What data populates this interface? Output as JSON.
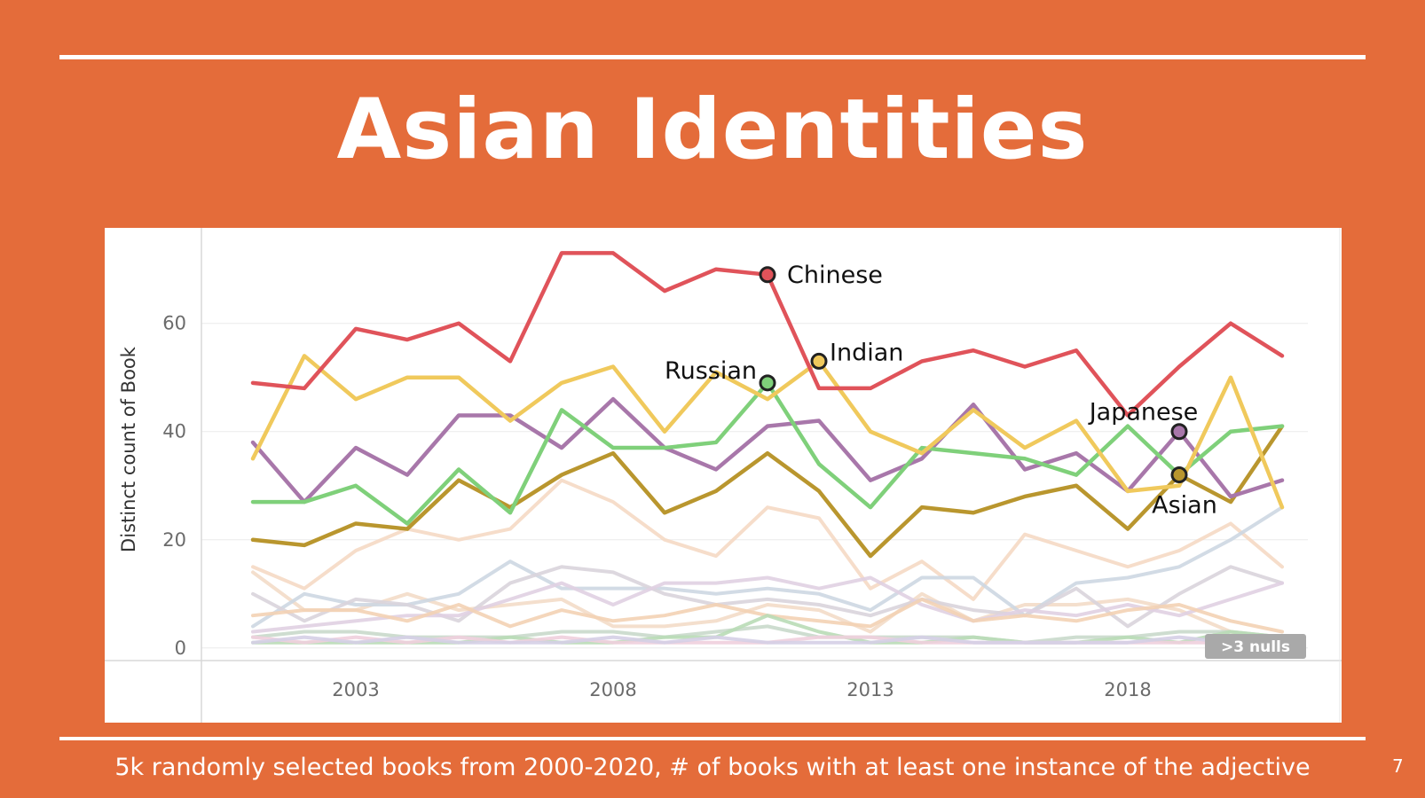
{
  "slide": {
    "title": "Asian Identities",
    "footer": "5k randomly selected books from 2000-2020, # of books with at least one instance of the adjective",
    "page_number": "7"
  },
  "chart_data": {
    "type": "line",
    "ylabel": "Distinct count of Book",
    "xlabel": "",
    "x": [
      2001,
      2002,
      2003,
      2004,
      2005,
      2006,
      2007,
      2008,
      2009,
      2010,
      2011,
      2012,
      2013,
      2014,
      2015,
      2016,
      2017,
      2018,
      2019,
      2020,
      2021
    ],
    "x_ticks": [
      "2003",
      "2008",
      "2013",
      "2018"
    ],
    "x_tick_values": [
      2003,
      2008,
      2013,
      2018
    ],
    "y_ticks": [
      "0",
      "20",
      "40",
      "60"
    ],
    "y_tick_values": [
      0,
      20,
      40,
      60
    ],
    "ylim": [
      -2,
      77
    ],
    "xlim": [
      2000,
      2021.5
    ],
    "grid": true,
    "nulls_badge": ">3 nulls",
    "series": [
      {
        "name": "Chinese",
        "color": "#e0535a",
        "highlight": true,
        "values": [
          49,
          48,
          59,
          57,
          60,
          53,
          73,
          73,
          66,
          70,
          69,
          48,
          48,
          53,
          55,
          52,
          55,
          43,
          52,
          60,
          54
        ],
        "marker_x": 2011,
        "marker_y": 69
      },
      {
        "name": "Indian",
        "color": "#f0c95c",
        "highlight": true,
        "values": [
          35,
          54,
          46,
          50,
          50,
          42,
          49,
          52,
          40,
          51,
          46,
          53,
          40,
          36,
          44,
          37,
          42,
          29,
          30,
          50,
          26
        ],
        "marker_x": 2012,
        "marker_y": 53
      },
      {
        "name": "Russian",
        "color": "#7fd07a",
        "highlight": true,
        "values": [
          27,
          27,
          30,
          23,
          33,
          25,
          44,
          37,
          37,
          38,
          49,
          34,
          26,
          37,
          36,
          35,
          32,
          41,
          32,
          40,
          41
        ],
        "marker_x": 2011,
        "marker_y": 49
      },
      {
        "name": "Japanese",
        "color": "#a877aa",
        "highlight": true,
        "values": [
          38,
          27,
          37,
          32,
          43,
          43,
          37,
          46,
          37,
          33,
          41,
          42,
          31,
          35,
          45,
          33,
          36,
          29,
          40,
          28,
          31
        ],
        "marker_x": 2019,
        "marker_y": 40
      },
      {
        "name": "Asian",
        "color": "#b9962e",
        "highlight": true,
        "values": [
          20,
          19,
          23,
          22,
          31,
          26,
          32,
          36,
          25,
          29,
          36,
          29,
          17,
          26,
          25,
          28,
          30,
          22,
          32,
          27,
          41
        ],
        "marker_x": 2019,
        "marker_y": 32
      },
      {
        "name": "",
        "color": "#f5d9c4",
        "highlight": false,
        "values": [
          15,
          11,
          18,
          22,
          20,
          22,
          31,
          27,
          20,
          17,
          26,
          24,
          11,
          16,
          9,
          21,
          18,
          15,
          18,
          23,
          15
        ]
      },
      {
        "name": "",
        "color": "#f3dcc8",
        "highlight": false,
        "values": [
          14,
          7,
          7,
          10,
          7,
          8,
          9,
          4,
          4,
          5,
          8,
          7,
          3,
          10,
          5,
          8,
          8,
          9,
          7,
          3,
          1
        ]
      },
      {
        "name": "",
        "color": "#cdd7e2",
        "highlight": false,
        "values": [
          4,
          10,
          8,
          8,
          10,
          16,
          11,
          11,
          11,
          10,
          11,
          10,
          7,
          13,
          13,
          6,
          12,
          13,
          15,
          20,
          26
        ]
      },
      {
        "name": "",
        "color": "#d9d4dc",
        "highlight": false,
        "values": [
          10,
          5,
          9,
          8,
          5,
          12,
          15,
          14,
          10,
          8,
          9,
          8,
          6,
          9,
          7,
          6,
          11,
          4,
          10,
          15,
          12
        ]
      },
      {
        "name": "",
        "color": "#e0d0e2",
        "highlight": false,
        "values": [
          3,
          4,
          5,
          6,
          6,
          9,
          12,
          8,
          12,
          12,
          13,
          11,
          13,
          8,
          5,
          7,
          6,
          8,
          6,
          9,
          12
        ]
      },
      {
        "name": "",
        "color": "#f3d2b4",
        "highlight": false,
        "values": [
          6,
          7,
          7,
          5,
          8,
          4,
          7,
          5,
          6,
          8,
          6,
          5,
          4,
          9,
          5,
          6,
          5,
          7,
          8,
          5,
          3
        ]
      },
      {
        "name": "",
        "color": "#c9d9cb",
        "highlight": false,
        "values": [
          2,
          3,
          3,
          2,
          2,
          2,
          3,
          3,
          2,
          3,
          4,
          2,
          2,
          2,
          2,
          1,
          2,
          2,
          3,
          3,
          2
        ]
      },
      {
        "name": "",
        "color": "#b9dcb6",
        "highlight": false,
        "values": [
          1,
          1,
          1,
          1,
          1,
          2,
          1,
          1,
          2,
          2,
          6,
          3,
          1,
          1,
          2,
          1,
          1,
          2,
          1,
          3,
          2
        ]
      },
      {
        "name": "",
        "color": "#f0cfdd",
        "highlight": false,
        "values": [
          2,
          1,
          2,
          1,
          2,
          1,
          2,
          1,
          1,
          1,
          1,
          2,
          2,
          1,
          1,
          1,
          1,
          1,
          1,
          1,
          1
        ]
      },
      {
        "name": "",
        "color": "#d5cfe6",
        "highlight": false,
        "values": [
          1,
          2,
          1,
          2,
          1,
          1,
          1,
          2,
          1,
          2,
          1,
          1,
          1,
          2,
          1,
          1,
          1,
          1,
          2,
          1,
          1
        ]
      }
    ]
  }
}
